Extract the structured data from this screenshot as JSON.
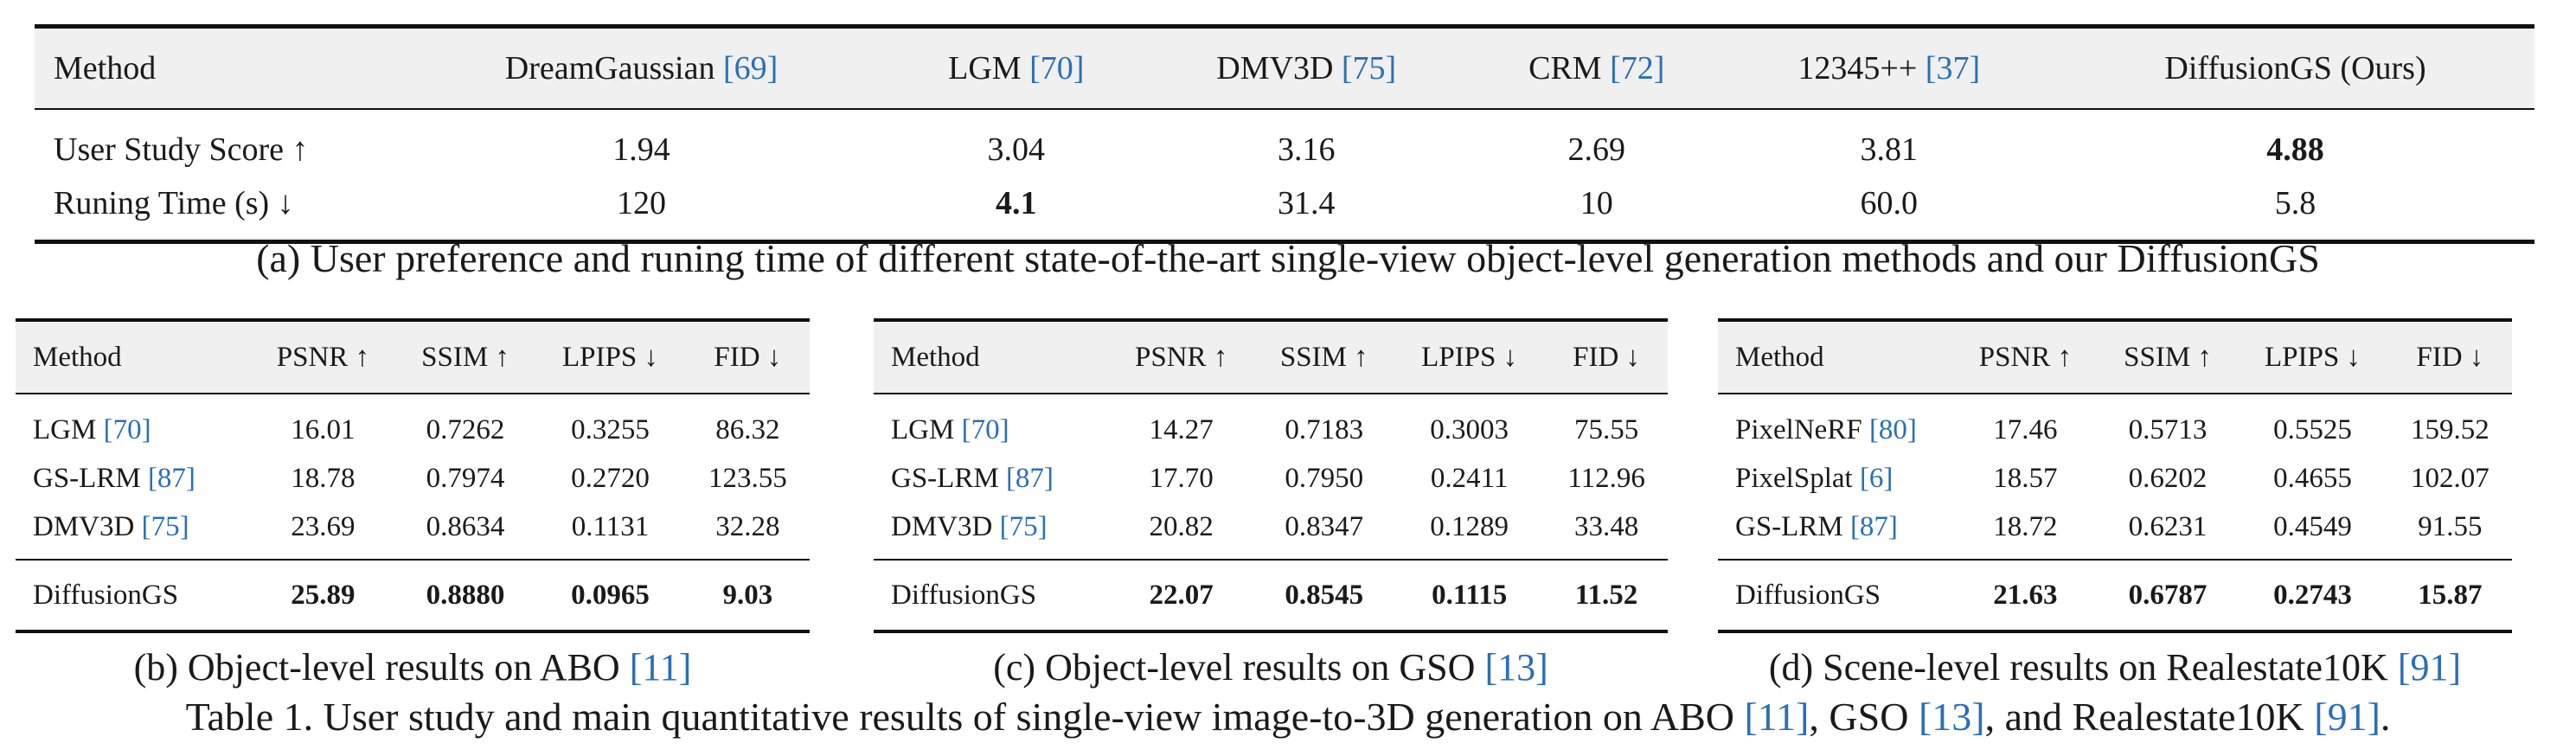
{
  "table_a": {
    "headers": [
      {
        "text": "Method",
        "cite": ""
      },
      {
        "text": "DreamGaussian ",
        "cite": "[69]"
      },
      {
        "text": "LGM ",
        "cite": "[70]"
      },
      {
        "text": "DMV3D ",
        "cite": "[75]"
      },
      {
        "text": "CRM ",
        "cite": "[72]"
      },
      {
        "text": "12345++ ",
        "cite": "[37]"
      },
      {
        "text": "DiffusionGS (Ours)",
        "cite": ""
      }
    ],
    "rows": [
      {
        "label": "User Study Score ↑",
        "values": [
          "1.94",
          "3.04",
          "3.16",
          "2.69",
          "3.81",
          "4.88"
        ],
        "bold_index": 5
      },
      {
        "label": "Runing Time (s) ↓",
        "values": [
          "120",
          "4.1",
          "31.4",
          "10",
          "60.0",
          "5.8"
        ],
        "bold_index": 1
      }
    ],
    "caption": "(a) User preference and runing time of different state-of-the-art single-view object-level generation methods and our DiffusionGS"
  },
  "table_b": {
    "headers": [
      "Method",
      "PSNR ↑",
      "SSIM ↑",
      "LPIPS ↓",
      "FID ↓"
    ],
    "rows": [
      {
        "method": "LGM ",
        "cite": "[70]",
        "values": [
          "16.01",
          "0.7262",
          "0.3255",
          "86.32"
        ]
      },
      {
        "method": "GS-LRM ",
        "cite": "[87]",
        "values": [
          "18.78",
          "0.7974",
          "0.2720",
          "123.55"
        ]
      },
      {
        "method": "DMV3D ",
        "cite": "[75]",
        "values": [
          "23.69",
          "0.8634",
          "0.1131",
          "32.28"
        ]
      }
    ],
    "ours": {
      "method": "DiffusionGS",
      "values": [
        "25.89",
        "0.8880",
        "0.0965",
        "9.03"
      ]
    },
    "caption_text": "(b) Object-level results on ABO ",
    "caption_cite": "[11]"
  },
  "table_c": {
    "headers": [
      "Method",
      "PSNR ↑",
      "SSIM ↑",
      "LPIPS ↓",
      "FID ↓"
    ],
    "rows": [
      {
        "method": "LGM ",
        "cite": "[70]",
        "values": [
          "14.27",
          "0.7183",
          "0.3003",
          "75.55"
        ]
      },
      {
        "method": "GS-LRM ",
        "cite": "[87]",
        "values": [
          "17.70",
          "0.7950",
          "0.2411",
          "112.96"
        ]
      },
      {
        "method": "DMV3D ",
        "cite": "[75]",
        "values": [
          "20.82",
          "0.8347",
          "0.1289",
          "33.48"
        ]
      }
    ],
    "ours": {
      "method": "DiffusionGS",
      "values": [
        "22.07",
        "0.8545",
        "0.1115",
        "11.52"
      ]
    },
    "caption_text": "(c) Object-level results on GSO ",
    "caption_cite": "[13]"
  },
  "table_d": {
    "headers": [
      "Method",
      "PSNR ↑",
      "SSIM ↑",
      "LPIPS ↓",
      "FID ↓"
    ],
    "rows": [
      {
        "method": "PixelNeRF ",
        "cite": "[80]",
        "values": [
          "17.46",
          "0.5713",
          "0.5525",
          "159.52"
        ]
      },
      {
        "method": "PixelSplat ",
        "cite": "[6]",
        "values": [
          "18.57",
          "0.6202",
          "0.4655",
          "102.07"
        ]
      },
      {
        "method": "GS-LRM ",
        "cite": "[87]",
        "values": [
          "18.72",
          "0.6231",
          "0.4549",
          "91.55"
        ]
      }
    ],
    "ours": {
      "method": "DiffusionGS",
      "values": [
        "21.63",
        "0.6787",
        "0.2743",
        "15.87"
      ]
    },
    "caption_text": "(d) Scene-level results on Realestate10K ",
    "caption_cite": "[91]"
  },
  "table_caption": {
    "p1": "Table 1. User study and main quantitative results of single-view image-to-3D generation on ABO ",
    "c1": "[11]",
    "p2": ", GSO ",
    "c2": "[13]",
    "p3": ", and Realestate10K ",
    "c3": "[91]",
    "p4": "."
  }
}
